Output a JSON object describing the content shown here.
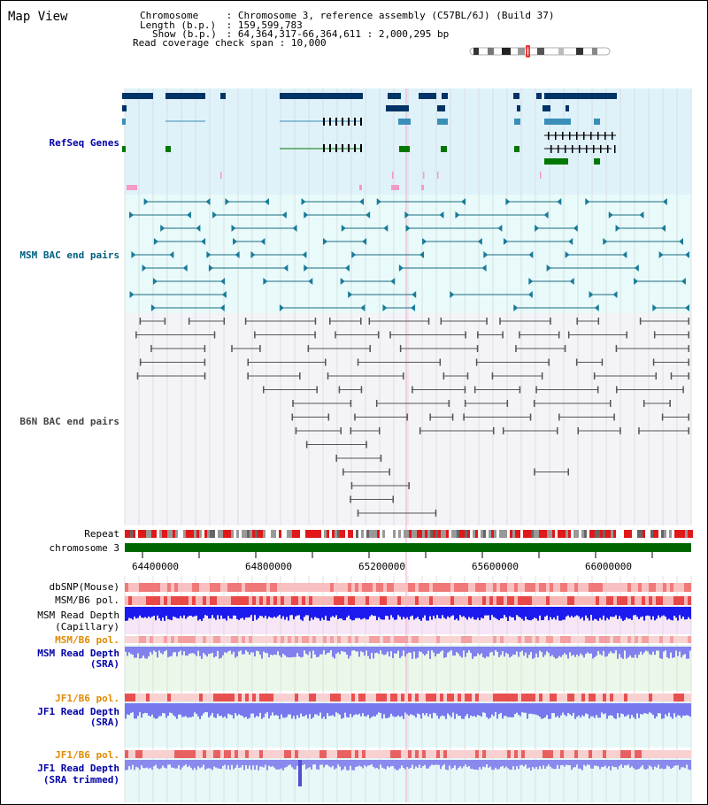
{
  "header": {
    "title": "Map View",
    "chromosome_key": "Chromosome",
    "chromosome_val": "Chromosome 3, reference assembly (C57BL/6J) (Build 37)",
    "length_key": "Length (b.p.)",
    "length_val": "159,599,783",
    "show_key": "Show (b.p.)",
    "show_val": "64,364,317-66,364,611 : 2,000,295 bp",
    "coverage_key": "Read coverage check span",
    "coverage_val": "10,000"
  },
  "tracks": {
    "refseq": "RefSeq Genes",
    "msm_bac": "MSM BAC end pairs",
    "b6n_bac": "B6N BAC end pairs",
    "repeat": "Repeat",
    "chromosome": "chromosome 3",
    "dbsnp": "dbSNP(Mouse)",
    "msm_pol": "MSM/B6 pol.",
    "msm_depth_cap_1": "MSM Read Depth",
    "msm_depth_cap_2": "(Capillary)",
    "msm_pol_2": "MSM/B6 pol.",
    "msm_depth_sra_1": "MSM Read Depth",
    "msm_depth_sra_2": "(SRA)",
    "jf1_pol": "JF1/B6 pol.",
    "jf1_depth_1": "JF1 Read Depth",
    "jf1_depth_2": "(SRA)",
    "jf1_pol_2": "JF1/B6 pol.",
    "jf1_trim_1": "JF1 Read Depth",
    "jf1_trim_2": "(SRA trimmed)"
  },
  "axis": {
    "ticks": [
      "64400000",
      "64800000",
      "65200000",
      "65600000",
      "66000000"
    ]
  },
  "colors": {
    "refseq_bg": "#dff2fa",
    "bac_bg": "#e8fafa",
    "b6n_bg": "#f4f4f8",
    "gene_dark": "#003366",
    "gene_mid": "#3a8fb8",
    "gene_green": "#007700",
    "chromosome_bar": "#006600",
    "snp_pink": "#f8a0a0",
    "depth_blue": "#1a1aee",
    "depth_light": "#7777ee"
  }
}
